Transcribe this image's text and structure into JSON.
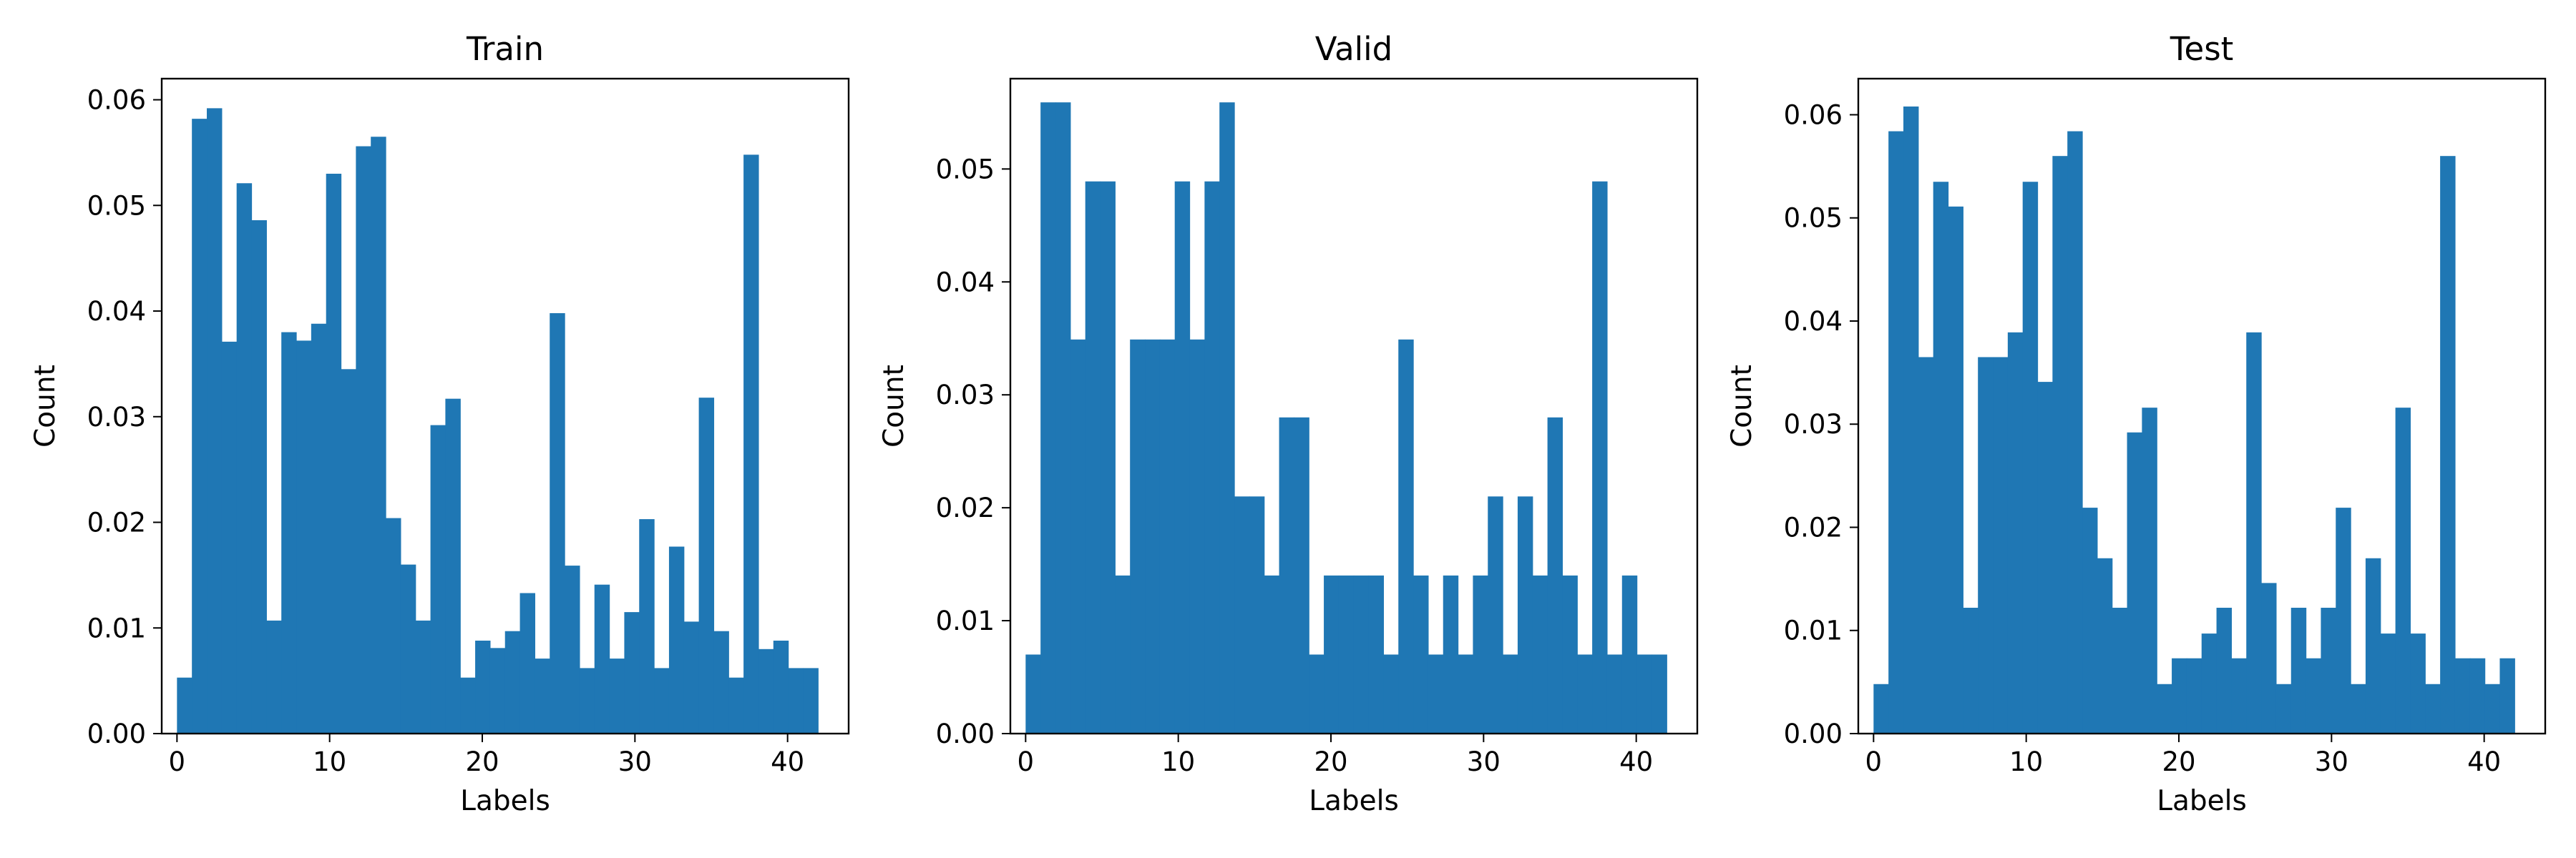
{
  "colors": {
    "bar": "#1f77b4",
    "axis": "#000000",
    "background": "#ffffff"
  },
  "chart_data": [
    {
      "type": "bar",
      "title": "Train",
      "xlabel": "Labels",
      "ylabel": "Count",
      "xlim": [
        -1,
        44
      ],
      "ylim": [
        0,
        0.062
      ],
      "x_ticks": [
        0,
        10,
        20,
        30,
        40
      ],
      "x_tick_labels": [
        "0",
        "10",
        "20",
        "30",
        "40"
      ],
      "y_ticks": [
        0,
        0.01,
        0.02,
        0.03,
        0.04,
        0.05,
        0.06
      ],
      "y_tick_labels": [
        "0.00",
        "0.01",
        "0.02",
        "0.03",
        "0.04",
        "0.05",
        "0.06"
      ],
      "bin_start": 0,
      "bin_width": 0.9767,
      "values": [
        0.0053,
        0.0582,
        0.0592,
        0.0371,
        0.0521,
        0.0486,
        0.0107,
        0.038,
        0.0372,
        0.0388,
        0.053,
        0.0345,
        0.0556,
        0.0565,
        0.0204,
        0.016,
        0.0107,
        0.0292,
        0.0317,
        0.0053,
        0.0088,
        0.0081,
        0.0097,
        0.0133,
        0.0071,
        0.0398,
        0.0159,
        0.0062,
        0.0141,
        0.0071,
        0.0115,
        0.0203,
        0.0062,
        0.0177,
        0.0106,
        0.0318,
        0.0097,
        0.0053,
        0.0548,
        0.008,
        0.0088,
        0.0062,
        0.0062
      ]
    },
    {
      "type": "bar",
      "title": "Valid",
      "xlabel": "Labels",
      "ylabel": "Count",
      "xlim": [
        -1,
        44
      ],
      "ylim": [
        0,
        0.058
      ],
      "x_ticks": [
        0,
        10,
        20,
        30,
        40
      ],
      "x_tick_labels": [
        "0",
        "10",
        "20",
        "30",
        "40"
      ],
      "y_ticks": [
        0,
        0.01,
        0.02,
        0.03,
        0.04,
        0.05
      ],
      "y_tick_labels": [
        "0.00",
        "0.01",
        "0.02",
        "0.03",
        "0.04",
        "0.05"
      ],
      "bin_start": 0,
      "bin_width": 0.9767,
      "values": [
        0.007,
        0.0559,
        0.0559,
        0.0349,
        0.0489,
        0.0489,
        0.014,
        0.0349,
        0.0349,
        0.0349,
        0.0489,
        0.0349,
        0.0489,
        0.0559,
        0.021,
        0.021,
        0.014,
        0.028,
        0.028,
        0.007,
        0.014,
        0.014,
        0.014,
        0.014,
        0.007,
        0.0349,
        0.014,
        0.007,
        0.014,
        0.007,
        0.014,
        0.021,
        0.007,
        0.021,
        0.014,
        0.028,
        0.014,
        0.007,
        0.0489,
        0.007,
        0.014,
        0.007,
        0.007
      ]
    },
    {
      "type": "bar",
      "title": "Test",
      "xlabel": "Labels",
      "ylabel": "Count",
      "xlim": [
        -1,
        44
      ],
      "ylim": [
        0,
        0.0635
      ],
      "x_ticks": [
        0,
        10,
        20,
        30,
        40
      ],
      "x_tick_labels": [
        "0",
        "10",
        "20",
        "30",
        "40"
      ],
      "y_ticks": [
        0,
        0.01,
        0.02,
        0.03,
        0.04,
        0.05,
        0.06
      ],
      "y_tick_labels": [
        "0.00",
        "0.01",
        "0.02",
        "0.03",
        "0.04",
        "0.05",
        "0.06"
      ],
      "bin_start": 0,
      "bin_width": 0.9767,
      "values": [
        0.0048,
        0.0584,
        0.0608,
        0.0365,
        0.0535,
        0.0511,
        0.0122,
        0.0365,
        0.0365,
        0.0389,
        0.0535,
        0.0341,
        0.056,
        0.0584,
        0.0219,
        0.017,
        0.0122,
        0.0292,
        0.0316,
        0.0048,
        0.0073,
        0.0073,
        0.0097,
        0.0122,
        0.0073,
        0.0389,
        0.0146,
        0.0048,
        0.0122,
        0.0073,
        0.0122,
        0.0219,
        0.0048,
        0.017,
        0.0097,
        0.0316,
        0.0097,
        0.0048,
        0.056,
        0.0073,
        0.0073,
        0.0048,
        0.0073
      ]
    }
  ]
}
